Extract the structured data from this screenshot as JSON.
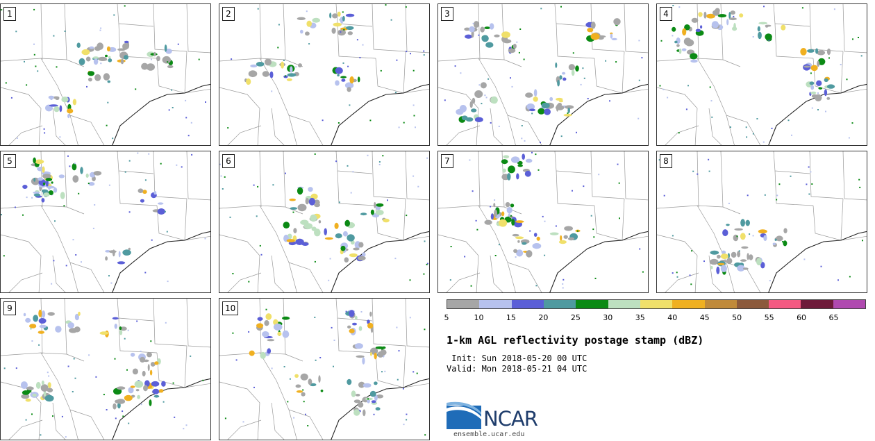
{
  "title": "1-km AGL reflectivity postage stamp (dBZ)",
  "init_text": " Init: Sun 2018-05-20 00 UTC",
  "valid_text": "Valid: Mon 2018-05-21 04 UTC",
  "panels": [
    {
      "label": "1"
    },
    {
      "label": "2"
    },
    {
      "label": "3"
    },
    {
      "label": "4"
    },
    {
      "label": "5"
    },
    {
      "label": "6"
    },
    {
      "label": "7"
    },
    {
      "label": "8"
    },
    {
      "label": "9"
    },
    {
      "label": "10"
    }
  ],
  "colorbar": {
    "colors": [
      "#a6a6a6",
      "#b7c2ee",
      "#5b5fd7",
      "#4f9aa0",
      "#0b8a14",
      "#bde0c0",
      "#f0e06a",
      "#f0b020",
      "#c08a3a",
      "#8c5a3c",
      "#f45a82",
      "#6e1a3a",
      "#b04ab0"
    ],
    "tick_labels": [
      "5",
      "10",
      "15",
      "20",
      "25",
      "30",
      "35",
      "40",
      "45",
      "50",
      "55",
      "60",
      "65"
    ]
  },
  "logo": {
    "name": "NCAR",
    "url": "ensemble.ucar.edu"
  }
}
